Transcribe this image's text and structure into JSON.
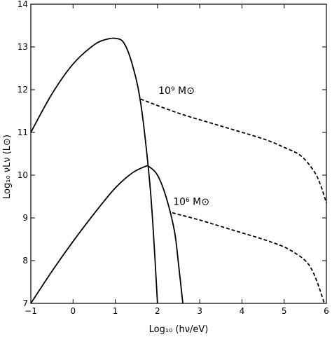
{
  "chart_data": {
    "type": "line",
    "title": "",
    "xlabel": "Log₁₀ (hν/eV)",
    "ylabel": "Log₁₀ νLν (L⊙)",
    "xlim": [
      -1,
      6
    ],
    "ylim": [
      7,
      14
    ],
    "xticks": [
      -1,
      0,
      1,
      2,
      3,
      4,
      5,
      6
    ],
    "yticks": [
      7,
      8,
      9,
      10,
      11,
      12,
      13,
      14
    ],
    "grid": false,
    "legend": "none",
    "annotations": [
      {
        "label": "10⁹ M⊙",
        "x": 2.45,
        "y": 11.9
      },
      {
        "label": "10⁶ M⊙",
        "x": 2.8,
        "y": 9.3
      }
    ],
    "series": [
      {
        "style": "solid",
        "x": [
          -1.0,
          -0.5,
          0.0,
          0.5,
          0.8,
          1.0,
          1.2,
          1.4,
          1.6,
          1.8,
          1.9,
          2.0
        ],
        "y": [
          11.0,
          11.9,
          12.6,
          13.05,
          13.18,
          13.2,
          13.1,
          12.6,
          11.7,
          10.0,
          8.7,
          7.0
        ]
      },
      {
        "style": "dashed",
        "x": [
          1.6,
          2.5,
          3.5,
          4.5,
          5.0,
          5.4,
          5.7,
          5.85,
          6.0
        ],
        "y": [
          11.78,
          11.45,
          11.15,
          10.85,
          10.65,
          10.45,
          10.1,
          9.8,
          9.35
        ]
      },
      {
        "style": "solid",
        "x": [
          -1.0,
          -0.5,
          0.0,
          0.5,
          1.0,
          1.4,
          1.7,
          1.8,
          2.0,
          2.2,
          2.4,
          2.5,
          2.6
        ],
        "y": [
          7.0,
          7.75,
          8.45,
          9.1,
          9.7,
          10.05,
          10.2,
          10.2,
          10.0,
          9.5,
          8.7,
          7.9,
          7.0
        ]
      },
      {
        "style": "dashed",
        "x": [
          2.35,
          3.0,
          3.5,
          4.0,
          4.5,
          5.0,
          5.3,
          5.5,
          5.65,
          5.8,
          5.95
        ],
        "y": [
          9.12,
          8.95,
          8.8,
          8.65,
          8.5,
          8.32,
          8.15,
          8.0,
          7.8,
          7.45,
          7.0
        ]
      }
    ]
  }
}
